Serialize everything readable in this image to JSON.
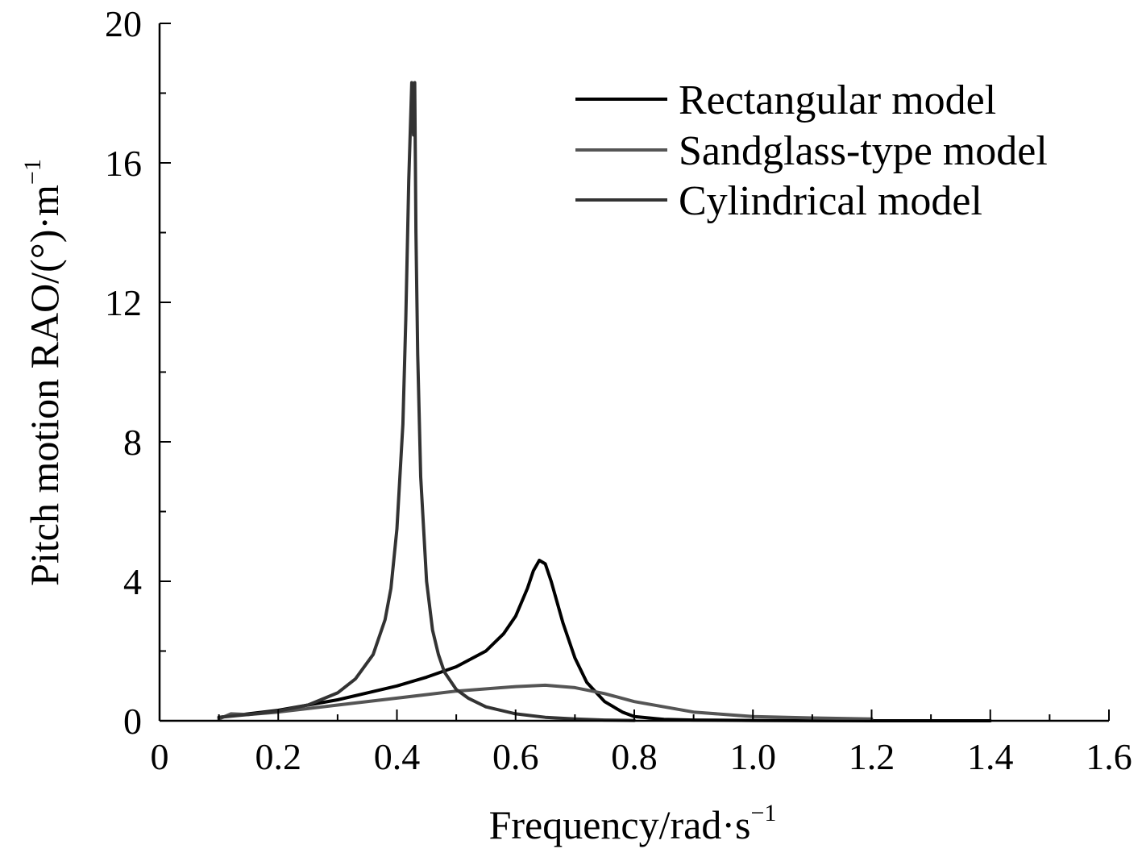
{
  "chart_data": {
    "type": "line",
    "title": "",
    "xlabel": "Frequency/rad·s",
    "xlabel_sup": "−1",
    "ylabel": "Pitch motion RAO/(°)·m",
    "ylabel_sup": "−1",
    "xlim": [
      0,
      1.6
    ],
    "ylim": [
      0,
      20
    ],
    "xticks": [
      0,
      0.2,
      0.4,
      0.6,
      0.8,
      1.0,
      1.2,
      1.4,
      1.6
    ],
    "xtick_labels": [
      "0",
      "0.2",
      "0.4",
      "0.6",
      "0.8",
      "1.0",
      "1.2",
      "1.4",
      "1.6"
    ],
    "yticks": [
      0,
      4,
      8,
      12,
      16,
      20
    ],
    "ytick_labels": [
      "0",
      "4",
      "8",
      "12",
      "16",
      "20"
    ],
    "grid": false,
    "legend_position": "top-right",
    "series": [
      {
        "name": "Rectangular model",
        "color": "#000000",
        "x": [
          0.1,
          0.15,
          0.2,
          0.25,
          0.3,
          0.35,
          0.4,
          0.45,
          0.5,
          0.55,
          0.58,
          0.6,
          0.62,
          0.63,
          0.64,
          0.65,
          0.66,
          0.68,
          0.7,
          0.72,
          0.75,
          0.78,
          0.8,
          0.85,
          0.9,
          1.0,
          1.2,
          1.4
        ],
        "y": [
          0.1,
          0.2,
          0.3,
          0.45,
          0.6,
          0.8,
          1.0,
          1.25,
          1.55,
          2.0,
          2.5,
          3.0,
          3.8,
          4.3,
          4.6,
          4.5,
          4.0,
          2.8,
          1.8,
          1.1,
          0.55,
          0.25,
          0.12,
          0.04,
          0.02,
          0.01,
          0.0,
          0.0
        ]
      },
      {
        "name": "Sandglass-type model",
        "color": "#555555",
        "x": [
          0.1,
          0.12,
          0.15,
          0.2,
          0.3,
          0.4,
          0.5,
          0.6,
          0.65,
          0.7,
          0.75,
          0.8,
          0.9,
          1.0,
          1.1,
          1.2
        ],
        "y": [
          0.05,
          0.2,
          0.18,
          0.25,
          0.45,
          0.65,
          0.85,
          0.98,
          1.02,
          0.95,
          0.78,
          0.55,
          0.25,
          0.12,
          0.08,
          0.05
        ]
      },
      {
        "name": "Cylindrical model",
        "color": "#333333",
        "x": [
          0.1,
          0.15,
          0.2,
          0.25,
          0.3,
          0.33,
          0.36,
          0.38,
          0.39,
          0.4,
          0.41,
          0.415,
          0.42,
          0.425,
          0.428,
          0.43,
          0.432,
          0.435,
          0.44,
          0.45,
          0.46,
          0.47,
          0.48,
          0.5,
          0.52,
          0.55,
          0.6,
          0.65,
          0.7,
          0.75,
          0.8
        ],
        "y": [
          0.1,
          0.18,
          0.28,
          0.45,
          0.8,
          1.2,
          1.9,
          2.9,
          3.8,
          5.5,
          8.5,
          11.5,
          15.5,
          18.3,
          16.8,
          18.3,
          14.0,
          10.5,
          7.0,
          4.0,
          2.6,
          1.9,
          1.4,
          0.9,
          0.65,
          0.4,
          0.2,
          0.1,
          0.05,
          0.02,
          0.01
        ]
      }
    ]
  }
}
